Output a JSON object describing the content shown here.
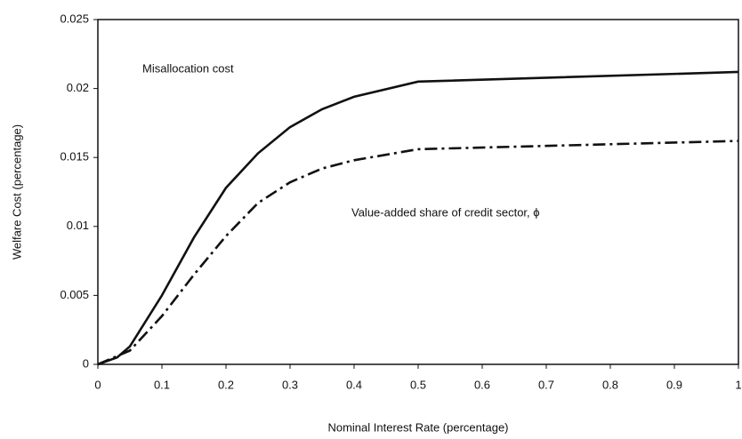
{
  "chart_data": {
    "type": "line",
    "xlabel": "Nominal Interest Rate (percentage)",
    "ylabel": "Welfare Cost (percentage)",
    "xlim": [
      0,
      1
    ],
    "ylim": [
      0,
      0.025
    ],
    "xticks": [
      0,
      0.1,
      0.2,
      0.3,
      0.4,
      0.5,
      0.6,
      0.7,
      0.8,
      0.9,
      1
    ],
    "yticks": [
      0,
      0.005,
      0.01,
      0.015,
      0.02,
      0.025
    ],
    "series": [
      {
        "name": "Misallocation cost",
        "color": "#111111",
        "dash": "solid",
        "x": [
          0,
          0.03,
          0.05,
          0.1,
          0.15,
          0.2,
          0.25,
          0.3,
          0.35,
          0.4,
          0.5,
          1
        ],
        "values": [
          0,
          0.0005,
          0.0013,
          0.005,
          0.0092,
          0.0128,
          0.0153,
          0.0172,
          0.0185,
          0.0194,
          0.0205,
          0.0212
        ]
      },
      {
        "name": "Value-added share of credit sector, ϕ",
        "color": "#111111",
        "dash": "dash-dot",
        "x": [
          0,
          0.05,
          0.1,
          0.15,
          0.2,
          0.25,
          0.3,
          0.35,
          0.4,
          0.5,
          1
        ],
        "values": [
          0,
          0.001,
          0.0035,
          0.0065,
          0.0093,
          0.0117,
          0.0132,
          0.0142,
          0.0148,
          0.0156,
          0.0162
        ]
      }
    ]
  }
}
